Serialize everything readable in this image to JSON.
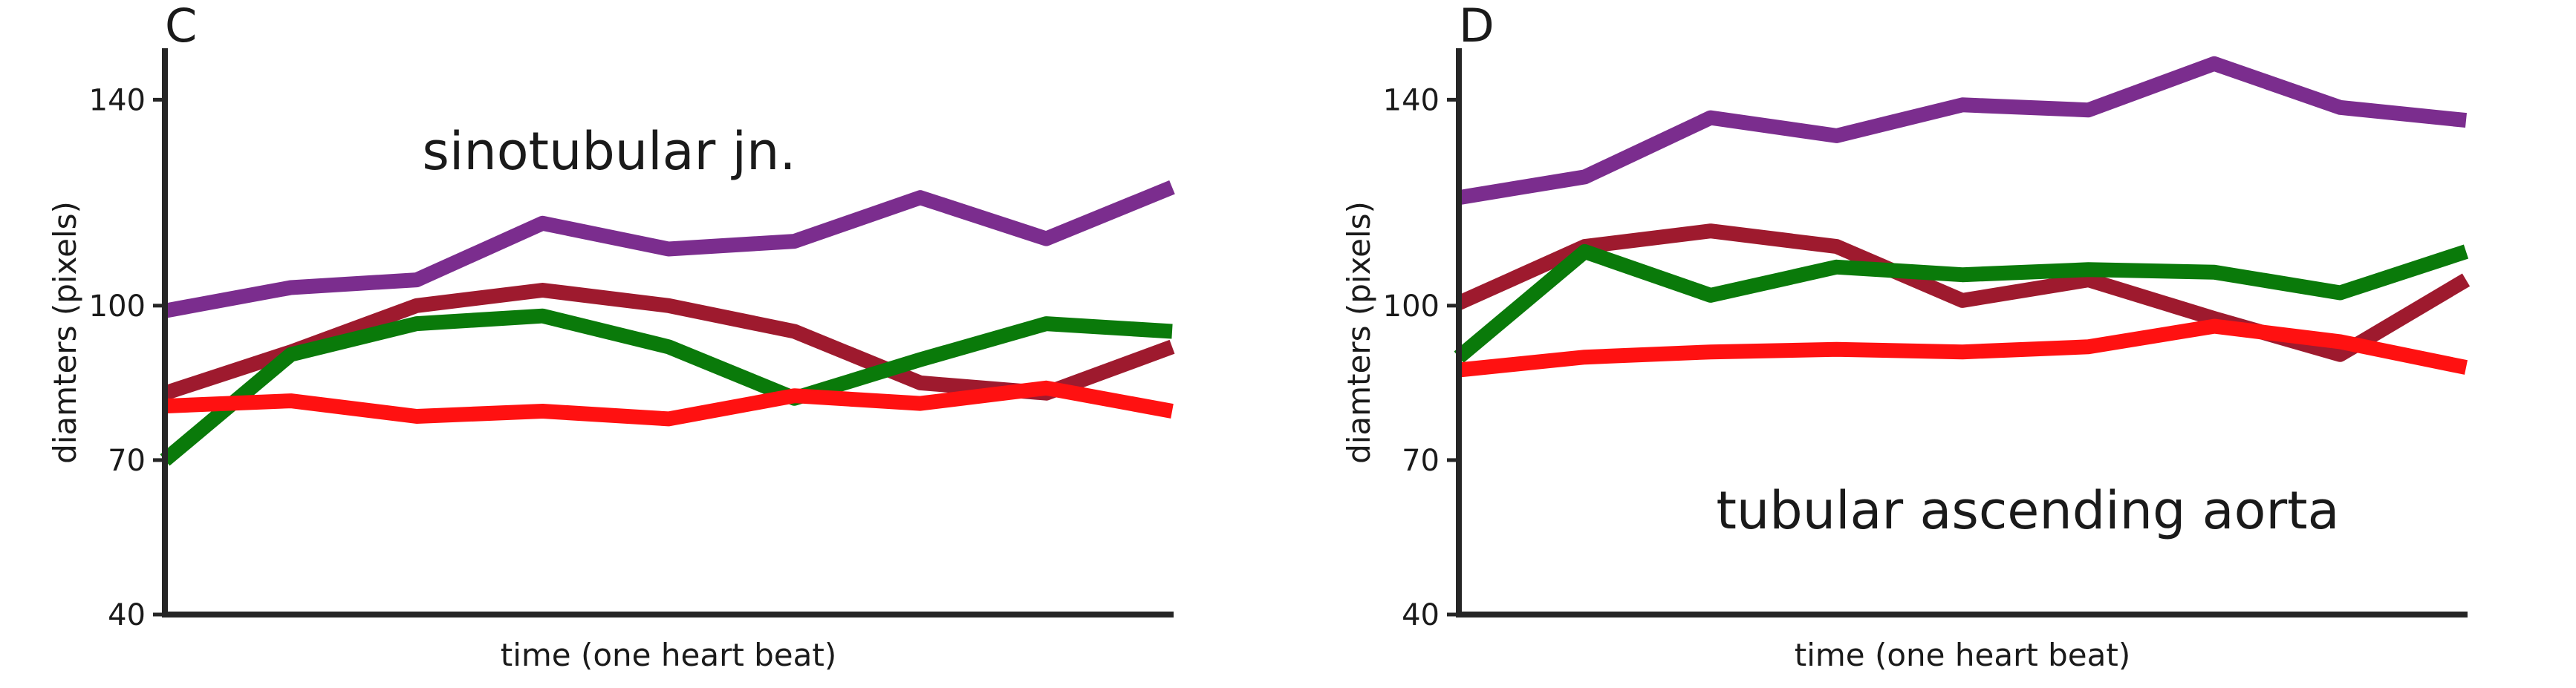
{
  "chart_data": [
    {
      "type": "line",
      "panel": "C",
      "annotation": "sinotubular jn.",
      "xlabel": "time (one heart beat)",
      "ylabel": "diamters (pixels)",
      "ylim": [
        40,
        150
      ],
      "yticks": [
        40,
        70,
        100,
        140
      ],
      "x": [
        0,
        1,
        2,
        3,
        4,
        5,
        6,
        7,
        8
      ],
      "grid": false,
      "series": [
        {
          "color": "#7B2D8E",
          "values": [
            99,
            103.5,
            105,
            116,
            111,
            112.5,
            121,
            113,
            123
          ]
        },
        {
          "color": "#9E1A2E",
          "values": [
            83,
            91,
            100,
            103,
            100,
            95,
            85,
            83,
            92
          ]
        },
        {
          "color": "#0A7A0A",
          "values": [
            70,
            90.5,
            96.5,
            98,
            92,
            82,
            89.5,
            96.5,
            95
          ]
        },
        {
          "color": "#FF1111",
          "values": [
            80.5,
            81.5,
            78.5,
            79.5,
            78,
            82.5,
            81,
            84,
            79.5
          ]
        }
      ]
    },
    {
      "type": "line",
      "panel": "D",
      "annotation": "tubular ascending aorta",
      "xlabel": "time (one heart beat)",
      "ylabel": "diamters (pixels)",
      "ylim": [
        40,
        150
      ],
      "yticks": [
        40,
        70,
        100,
        140
      ],
      "x": [
        0,
        1,
        2,
        3,
        4,
        5,
        6,
        7,
        8
      ],
      "grid": false,
      "series": [
        {
          "color": "#7B2D8E",
          "values": [
            121,
            125,
            136.5,
            133,
            139,
            138,
            147,
            138.5,
            136
          ]
        },
        {
          "color": "#9E1A2E",
          "values": [
            100.5,
            111.5,
            114.5,
            111.5,
            101,
            105,
            97.5,
            90.5,
            105
          ]
        },
        {
          "color": "#0A7A0A",
          "values": [
            90,
            110.5,
            102,
            107.5,
            106,
            107,
            106.5,
            102.5,
            110.5
          ]
        },
        {
          "color": "#FF1111",
          "values": [
            87.5,
            90,
            91,
            91.5,
            91,
            92,
            96,
            93,
            88
          ]
        }
      ]
    }
  ]
}
